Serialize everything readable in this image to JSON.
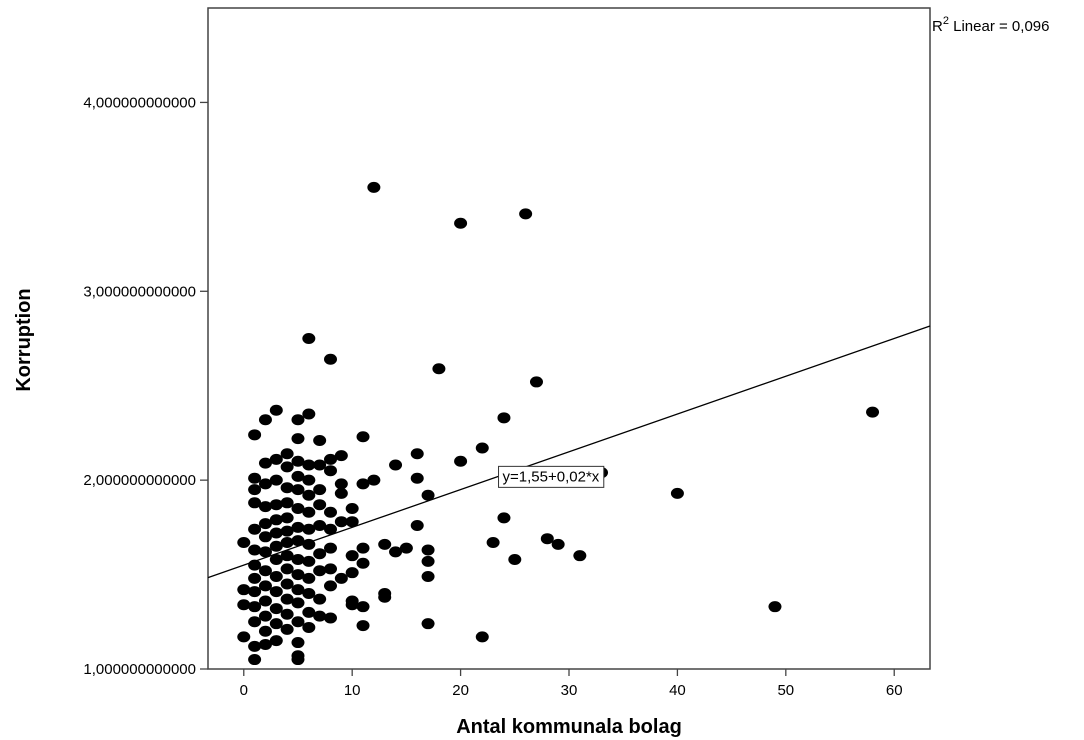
{
  "chart_data": {
    "type": "scatter",
    "title": "",
    "xlabel": "Antal kommunala bolag",
    "ylabel": "Korruption",
    "xlim": [
      -3.3,
      63.3
    ],
    "ylim": [
      1.0,
      4.5
    ],
    "x_ticks": [
      0,
      10,
      20,
      30,
      40,
      50,
      60
    ],
    "x_tick_labels": [
      "0",
      "10",
      "20",
      "30",
      "40",
      "50",
      "60"
    ],
    "y_ticks": [
      1,
      2,
      3,
      4
    ],
    "y_tick_labels": [
      "1,000000000000",
      "2,000000000000",
      "3,000000000000",
      "4,000000000000"
    ],
    "fit_line": {
      "intercept": 1.55,
      "slope": 0.02,
      "label": "y=1,55+0,02*x",
      "label_x": 23.5
    },
    "r2_label": {
      "prefix": "R",
      "sup": "2",
      "suffix": " Linear = 0,096"
    },
    "grid": false,
    "points": [
      [
        0,
        1.67
      ],
      [
        0,
        1.42
      ],
      [
        0,
        1.34
      ],
      [
        0,
        1.17
      ],
      [
        1,
        2.24
      ],
      [
        1,
        2.01
      ],
      [
        1,
        1.95
      ],
      [
        1,
        1.88
      ],
      [
        1,
        1.74
      ],
      [
        1,
        1.63
      ],
      [
        1,
        1.55
      ],
      [
        1,
        1.48
      ],
      [
        1,
        1.41
      ],
      [
        1,
        1.33
      ],
      [
        1,
        1.25
      ],
      [
        1,
        1.12
      ],
      [
        1,
        1.05
      ],
      [
        2,
        2.32
      ],
      [
        2,
        2.09
      ],
      [
        2,
        1.98
      ],
      [
        2,
        1.86
      ],
      [
        2,
        1.77
      ],
      [
        2,
        1.7
      ],
      [
        2,
        1.62
      ],
      [
        2,
        1.52
      ],
      [
        2,
        1.44
      ],
      [
        2,
        1.36
      ],
      [
        2,
        1.28
      ],
      [
        2,
        1.2
      ],
      [
        2,
        1.13
      ],
      [
        3,
        2.37
      ],
      [
        3,
        2.11
      ],
      [
        3,
        2.0
      ],
      [
        3,
        1.87
      ],
      [
        3,
        1.79
      ],
      [
        3,
        1.72
      ],
      [
        3,
        1.65
      ],
      [
        3,
        1.58
      ],
      [
        3,
        1.49
      ],
      [
        3,
        1.41
      ],
      [
        3,
        1.32
      ],
      [
        3,
        1.24
      ],
      [
        3,
        1.15
      ],
      [
        4,
        2.14
      ],
      [
        4,
        2.07
      ],
      [
        4,
        1.96
      ],
      [
        4,
        1.88
      ],
      [
        4,
        1.8
      ],
      [
        4,
        1.73
      ],
      [
        4,
        1.67
      ],
      [
        4,
        1.6
      ],
      [
        4,
        1.53
      ],
      [
        4,
        1.45
      ],
      [
        4,
        1.37
      ],
      [
        4,
        1.29
      ],
      [
        4,
        1.21
      ],
      [
        5,
        2.32
      ],
      [
        5,
        2.22
      ],
      [
        5,
        2.1
      ],
      [
        5,
        2.02
      ],
      [
        5,
        1.95
      ],
      [
        5,
        1.85
      ],
      [
        5,
        1.75
      ],
      [
        5,
        1.68
      ],
      [
        5,
        1.58
      ],
      [
        5,
        1.5
      ],
      [
        5,
        1.42
      ],
      [
        5,
        1.35
      ],
      [
        5,
        1.25
      ],
      [
        5,
        1.14
      ],
      [
        5,
        1.07
      ],
      [
        5,
        1.05
      ],
      [
        6,
        2.75
      ],
      [
        6,
        2.35
      ],
      [
        6,
        2.08
      ],
      [
        6,
        2.0
      ],
      [
        6,
        1.92
      ],
      [
        6,
        1.83
      ],
      [
        6,
        1.74
      ],
      [
        6,
        1.66
      ],
      [
        6,
        1.57
      ],
      [
        6,
        1.48
      ],
      [
        6,
        1.4
      ],
      [
        6,
        1.3
      ],
      [
        6,
        1.22
      ],
      [
        7,
        2.21
      ],
      [
        7,
        2.08
      ],
      [
        7,
        1.95
      ],
      [
        7,
        1.87
      ],
      [
        7,
        1.76
      ],
      [
        7,
        1.61
      ],
      [
        7,
        1.52
      ],
      [
        7,
        1.37
      ],
      [
        7,
        1.28
      ],
      [
        8,
        2.64
      ],
      [
        8,
        2.11
      ],
      [
        8,
        2.05
      ],
      [
        8,
        1.83
      ],
      [
        8,
        1.74
      ],
      [
        8,
        1.64
      ],
      [
        8,
        1.53
      ],
      [
        8,
        1.44
      ],
      [
        8,
        1.27
      ],
      [
        9,
        2.13
      ],
      [
        9,
        1.98
      ],
      [
        9,
        1.93
      ],
      [
        9,
        1.78
      ],
      [
        9,
        1.48
      ],
      [
        10,
        1.85
      ],
      [
        10,
        1.78
      ],
      [
        10,
        1.6
      ],
      [
        10,
        1.51
      ],
      [
        10,
        1.36
      ],
      [
        10,
        1.34
      ],
      [
        11,
        2.23
      ],
      [
        11,
        1.98
      ],
      [
        11,
        1.64
      ],
      [
        11,
        1.56
      ],
      [
        11,
        1.33
      ],
      [
        11,
        1.23
      ],
      [
        12,
        3.55
      ],
      [
        12,
        2.0
      ],
      [
        13,
        1.66
      ],
      [
        13,
        1.4
      ],
      [
        13,
        1.38
      ],
      [
        14,
        2.08
      ],
      [
        14,
        1.62
      ],
      [
        15,
        1.64
      ],
      [
        16,
        2.14
      ],
      [
        16,
        2.01
      ],
      [
        16,
        1.76
      ],
      [
        17,
        1.92
      ],
      [
        17,
        1.63
      ],
      [
        17,
        1.57
      ],
      [
        17,
        1.49
      ],
      [
        17,
        1.24
      ],
      [
        18,
        2.59
      ],
      [
        20,
        3.36
      ],
      [
        20,
        2.1
      ],
      [
        22,
        2.17
      ],
      [
        22,
        1.17
      ],
      [
        23,
        1.67
      ],
      [
        24,
        2.33
      ],
      [
        24,
        1.8
      ],
      [
        25,
        1.58
      ],
      [
        26,
        3.41
      ],
      [
        27,
        2.52
      ],
      [
        28,
        2.01
      ],
      [
        28,
        1.69
      ],
      [
        29,
        1.66
      ],
      [
        30,
        2.01
      ],
      [
        31,
        1.6
      ],
      [
        33,
        2.04
      ],
      [
        40,
        1.93
      ],
      [
        49,
        1.33
      ],
      [
        58,
        2.36
      ]
    ]
  }
}
